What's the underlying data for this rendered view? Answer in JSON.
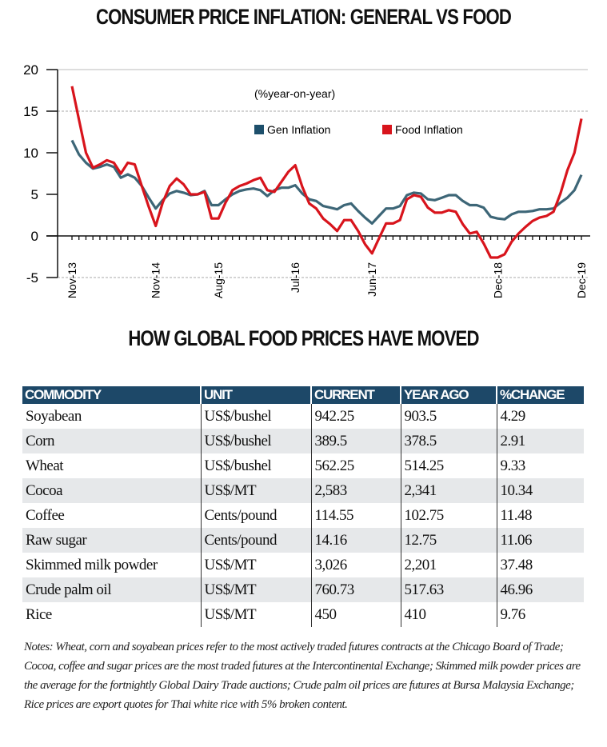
{
  "title": "CONSUMER PRICE INFLATION: GENERAL VS FOOD",
  "chart_data": {
    "type": "line",
    "title": "CONSUMER PRICE INFLATION: GENERAL VS FOOD",
    "annotation": "(%year-on-year)",
    "xlabel": "",
    "ylabel": "",
    "ylim": [
      -5,
      20
    ],
    "yticks": [
      "20",
      "15",
      "10",
      "5",
      "0",
      "-5"
    ],
    "xtick_labels": [
      "Nov-13",
      "Nov-14",
      "Aug-15",
      "Jul-16",
      "Jun-17",
      "Dec-18",
      "Dec-19"
    ],
    "legend_position": "top-center",
    "x": [
      "Nov-13",
      "Dec-13",
      "Jan-14",
      "Feb-14",
      "Mar-14",
      "Apr-14",
      "May-14",
      "Jun-14",
      "Jul-14",
      "Aug-14",
      "Sep-14",
      "Oct-14",
      "Nov-14",
      "Dec-14",
      "Jan-15",
      "Feb-15",
      "Mar-15",
      "Apr-15",
      "May-15",
      "Jun-15",
      "Jul-15",
      "Aug-15",
      "Sep-15",
      "Oct-15",
      "Nov-15",
      "Dec-15",
      "Jan-16",
      "Feb-16",
      "Mar-16",
      "Apr-16",
      "May-16",
      "Jun-16",
      "Jul-16",
      "Aug-16",
      "Sep-16",
      "Oct-16",
      "Nov-16",
      "Dec-16",
      "Jan-17",
      "Feb-17",
      "Mar-17",
      "Apr-17",
      "May-17",
      "Jun-17",
      "Jul-17",
      "Aug-17",
      "Sep-17",
      "Oct-17",
      "Nov-17",
      "Dec-17",
      "Jan-18",
      "Feb-18",
      "Mar-18",
      "Apr-18",
      "May-18",
      "Jun-18",
      "Jul-18",
      "Aug-18",
      "Sep-18",
      "Oct-18",
      "Nov-18",
      "Dec-18",
      "Jan-19",
      "Feb-19",
      "Mar-19",
      "Apr-19",
      "May-19",
      "Jun-19",
      "Jul-19",
      "Aug-19",
      "Sep-19",
      "Oct-19",
      "Nov-19",
      "Dec-19"
    ],
    "series": [
      {
        "name": "Gen Inflation",
        "color": "#3d6677",
        "values": [
          11.5,
          9.8,
          8.8,
          8.1,
          8.3,
          8.6,
          8.3,
          7.0,
          7.4,
          7.0,
          6.0,
          4.6,
          3.3,
          4.3,
          5.1,
          5.4,
          5.2,
          4.9,
          5.0,
          5.4,
          3.7,
          3.7,
          4.4,
          5.0,
          5.4,
          5.6,
          5.7,
          5.5,
          4.8,
          5.5,
          5.8,
          5.8,
          6.1,
          5.1,
          4.4,
          4.2,
          3.6,
          3.4,
          3.2,
          3.7,
          3.9,
          3.0,
          2.2,
          1.5,
          2.4,
          3.3,
          3.3,
          3.6,
          4.9,
          5.2,
          5.1,
          4.4,
          4.3,
          4.6,
          4.9,
          4.9,
          4.2,
          3.7,
          3.7,
          3.4,
          2.3,
          2.1,
          2.0,
          2.6,
          2.9,
          2.9,
          3.0,
          3.2,
          3.2,
          3.3,
          4.0,
          4.6,
          5.5,
          7.35
        ]
      },
      {
        "name": "Food Inflation",
        "color": "#d8141c",
        "values": [
          18,
          14,
          10,
          8.2,
          8.6,
          9.1,
          8.8,
          7.5,
          8.8,
          8.6,
          6.0,
          3.5,
          1.2,
          4.0,
          6.0,
          6.9,
          6.2,
          5.0,
          5.0,
          5.3,
          2.1,
          2.1,
          4.0,
          5.5,
          6.0,
          6.3,
          6.7,
          7.0,
          5.5,
          5.3,
          6.5,
          7.7,
          8.5,
          5.9,
          3.9,
          3.3,
          2.1,
          1.4,
          0.6,
          1.9,
          1.9,
          0.6,
          -1.0,
          -2.1,
          -0.3,
          1.5,
          1.5,
          1.9,
          4.4,
          4.9,
          4.7,
          3.4,
          2.8,
          2.8,
          3.1,
          2.9,
          1.4,
          0.3,
          0.5,
          -0.9,
          -2.6,
          -2.6,
          -2.2,
          -0.7,
          0.3,
          1.1,
          1.8,
          2.2,
          2.4,
          2.9,
          5.1,
          7.9,
          10,
          14.1
        ]
      }
    ]
  },
  "table_title": "HOW GLOBAL FOOD PRICES HAVE MOVED",
  "table": {
    "header_color": "#1d4868",
    "columns": [
      "COMMODITY",
      "UNIT",
      "CURRENT",
      "YEAR AGO",
      "%CHANGE"
    ],
    "rows": [
      [
        "Soyabean",
        "US$/bushel",
        "942.25",
        "903.5",
        "4.29"
      ],
      [
        "Corn",
        "US$/bushel",
        "389.5",
        "378.5",
        "2.91"
      ],
      [
        "Wheat",
        "US$/bushel",
        "562.25",
        "514.25",
        "9.33"
      ],
      [
        "Cocoa",
        "US$/MT",
        "2,583",
        "2,341",
        "10.34"
      ],
      [
        "Coffee",
        "Cents/pound",
        "114.55",
        "102.75",
        "11.48"
      ],
      [
        "Raw sugar",
        "Cents/pound",
        "14.16",
        "12.75",
        "11.06"
      ],
      [
        "Skimmed milk powder",
        "US$/MT",
        "3,026",
        "2,201",
        "37.48"
      ],
      [
        "Crude palm oil",
        "US$/MT",
        "760.73",
        "517.63",
        "46.96"
      ],
      [
        "Rice",
        "US$/MT",
        "450",
        "410",
        "9.76"
      ]
    ]
  },
  "notes": "Notes: Wheat, corn and soyabean prices refer to the most actively traded futures contracts at the Chicago Board of Trade; Cocoa, coffee and sugar prices are the most traded futures at the Intercontinental Exchange; Skimmed milk powder prices are the average for the fortnightly Global Dairy Trade auctions; Crude palm oil prices are futures at Bursa Malaysia Exchange; Rice prices are export quotes for Thai white rice with 5% broken content."
}
